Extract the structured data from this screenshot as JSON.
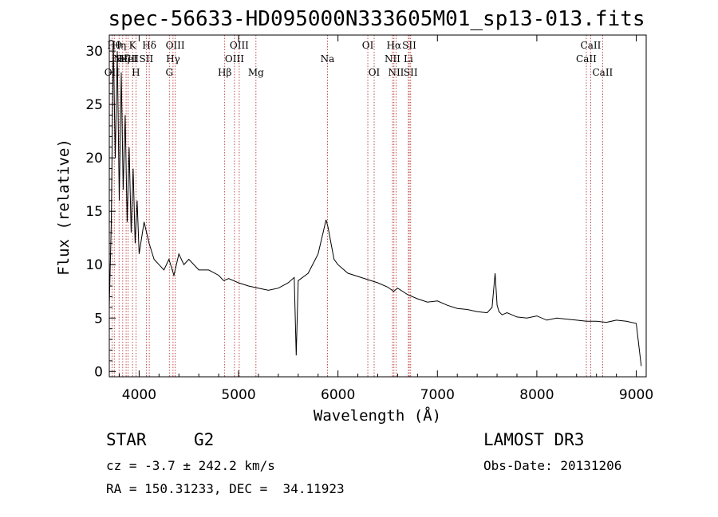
{
  "chart_data": {
    "type": "line",
    "title": "spec-56633-HD095000N333605M01_sp13-013.fits",
    "xlabel": "Wavelength (Å)",
    "ylabel": "Flux (relative)",
    "xlim": [
      3700,
      9100
    ],
    "ylim": [
      -0.5,
      31.5
    ],
    "xticks": [
      4000,
      5000,
      6000,
      7000,
      8000,
      9000
    ],
    "yticks": [
      0,
      5,
      10,
      15,
      20,
      25,
      30
    ],
    "grid": false,
    "series": [
      {
        "name": "spectrum",
        "x": [
          3700,
          3720,
          3740,
          3760,
          3780,
          3800,
          3820,
          3840,
          3860,
          3880,
          3900,
          3920,
          3940,
          3960,
          3980,
          4000,
          4050,
          4100,
          4150,
          4200,
          4250,
          4300,
          4350,
          4400,
          4450,
          4500,
          4600,
          4700,
          4800,
          4850,
          4900,
          5000,
          5100,
          5200,
          5300,
          5400,
          5500,
          5560,
          5580,
          5600,
          5700,
          5800,
          5850,
          5880,
          5900,
          5930,
          5960,
          6000,
          6100,
          6200,
          6300,
          6400,
          6500,
          6560,
          6600,
          6700,
          6800,
          6900,
          7000,
          7100,
          7200,
          7300,
          7400,
          7500,
          7550,
          7580,
          7600,
          7620,
          7650,
          7700,
          7800,
          7900,
          8000,
          8100,
          8200,
          8300,
          8400,
          8500,
          8600,
          8700,
          8800,
          8900,
          9000,
          9050
        ],
        "y": [
          6,
          14,
          31,
          20,
          30,
          16,
          28,
          17,
          24,
          14,
          21,
          13,
          19,
          12,
          16,
          11,
          14,
          12,
          10.5,
          10,
          9.5,
          10.5,
          9,
          11,
          10,
          10.5,
          9.5,
          9.5,
          9,
          8.5,
          8.7,
          8.3,
          8,
          7.8,
          7.6,
          7.8,
          8.3,
          8.8,
          1.5,
          8.5,
          9.2,
          11,
          13,
          14.2,
          13.5,
          12,
          10.5,
          10,
          9.2,
          8.9,
          8.6,
          8.3,
          7.9,
          7.5,
          7.8,
          7.2,
          6.8,
          6.5,
          6.6,
          6.2,
          5.9,
          5.8,
          5.6,
          5.5,
          6,
          9.2,
          6.2,
          5.6,
          5.3,
          5.5,
          5.1,
          5,
          5.2,
          4.8,
          5,
          4.9,
          4.8,
          4.7,
          4.7,
          4.6,
          4.8,
          4.7,
          4.5,
          0.5
        ]
      }
    ],
    "lines": [
      {
        "wl": 3727,
        "label": "OII",
        "row": 3
      },
      {
        "wl": 3750,
        "label": "Hθ",
        "row": 1
      },
      {
        "wl": 3798,
        "label": "Hη",
        "row": 1
      },
      {
        "wl": 3835,
        "label": "Hζ",
        "row": 2
      },
      {
        "wl": 3869,
        "label": "NeIII",
        "row": 2
      },
      {
        "wl": 3889,
        "label": "HeI",
        "row": 2
      },
      {
        "wl": 3934,
        "label": "K",
        "row": 1
      },
      {
        "wl": 3968,
        "label": "H",
        "row": 3
      },
      {
        "wl": 4072,
        "label": "SII",
        "row": 2
      },
      {
        "wl": 4102,
        "label": "Hδ",
        "row": 1
      },
      {
        "wl": 4304,
        "label": "G",
        "row": 3
      },
      {
        "wl": 4341,
        "label": "Hγ",
        "row": 2
      },
      {
        "wl": 4363,
        "label": "OIII",
        "row": 1
      },
      {
        "wl": 4861,
        "label": "Hβ",
        "row": 3
      },
      {
        "wl": 4959,
        "label": "OIII",
        "row": 2
      },
      {
        "wl": 5007,
        "label": "OIII",
        "row": 1
      },
      {
        "wl": 5175,
        "label": "Mg",
        "row": 3
      },
      {
        "wl": 5894,
        "label": "Na",
        "row": 2
      },
      {
        "wl": 6300,
        "label": "OI",
        "row": 1
      },
      {
        "wl": 6364,
        "label": "OI",
        "row": 3
      },
      {
        "wl": 6548,
        "label": "NII",
        "row": 2
      },
      {
        "wl": 6563,
        "label": "Hα",
        "row": 1
      },
      {
        "wl": 6584,
        "label": "NII",
        "row": 3
      },
      {
        "wl": 6708,
        "label": "Li",
        "row": 2
      },
      {
        "wl": 6717,
        "label": "SII",
        "row": 1
      },
      {
        "wl": 6731,
        "label": "SII",
        "row": 3
      },
      {
        "wl": 8498,
        "label": "CaII",
        "row": 2
      },
      {
        "wl": 8542,
        "label": "CaII",
        "row": 1
      },
      {
        "wl": 8662,
        "label": "CaII",
        "row": 3
      }
    ]
  },
  "info": {
    "class": "STAR",
    "subclass": "G2",
    "survey": "LAMOST DR3",
    "cz": "cz = -3.7 ± 242.2 km/s",
    "obs_date": "Obs-Date: 20131206",
    "coords": "RA = 150.31233, DEC =  34.11923"
  }
}
